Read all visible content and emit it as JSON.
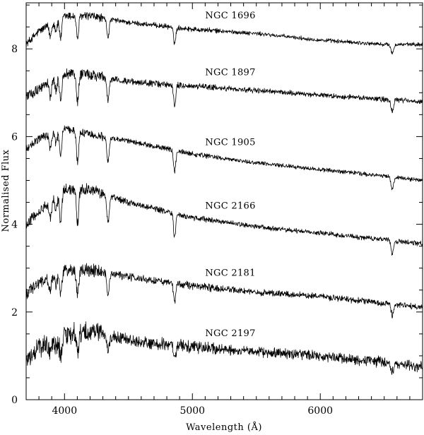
{
  "chart_data": {
    "type": "line",
    "xlabel": "Wavelength (Å)",
    "ylabel": "Normalised Flux",
    "xlim": [
      3700,
      6800
    ],
    "ylim": [
      0,
      9.05
    ],
    "x_ticks": [
      4000,
      5000,
      6000
    ],
    "y_ticks": [
      0,
      2,
      4,
      6,
      8
    ],
    "grid": false,
    "legend": "none",
    "absorption_lines": [
      {
        "wavelength": 3889,
        "depth": 0.45
      },
      {
        "wavelength": 3934,
        "depth": 0.35
      },
      {
        "wavelength": 3970,
        "depth": 0.75
      },
      {
        "wavelength": 4102,
        "depth": 0.85
      },
      {
        "wavelength": 4340,
        "depth": 0.7
      },
      {
        "wavelength": 4861,
        "depth": 0.6
      },
      {
        "wavelength": 6563,
        "depth": 0.35
      }
    ],
    "series": [
      {
        "name": "NGC 1696",
        "continuum": [
          [
            3700,
            8.1
          ],
          [
            3800,
            8.4
          ],
          [
            4000,
            8.75
          ],
          [
            4200,
            8.75
          ],
          [
            4500,
            8.6
          ],
          [
            5000,
            8.45
          ],
          [
            5500,
            8.35
          ],
          [
            6000,
            8.2
          ],
          [
            6500,
            8.1
          ],
          [
            6800,
            8.1
          ]
        ],
        "line_scale": 0.6,
        "noise": 0.04
      },
      {
        "name": "NGC 1897",
        "continuum": [
          [
            3700,
            6.9
          ],
          [
            3800,
            7.1
          ],
          [
            4000,
            7.45
          ],
          [
            4200,
            7.4
          ],
          [
            4500,
            7.25
          ],
          [
            5000,
            7.15
          ],
          [
            5500,
            7.05
          ],
          [
            6000,
            6.95
          ],
          [
            6500,
            6.85
          ],
          [
            6800,
            6.8
          ]
        ],
        "line_scale": 0.75,
        "noise": 0.05
      },
      {
        "name": "NGC 1905",
        "continuum": [
          [
            3700,
            5.7
          ],
          [
            3800,
            5.95
          ],
          [
            4000,
            6.2
          ],
          [
            4200,
            6.05
          ],
          [
            4500,
            5.9
          ],
          [
            5000,
            5.6
          ],
          [
            5500,
            5.4
          ],
          [
            6000,
            5.25
          ],
          [
            6500,
            5.1
          ],
          [
            6800,
            5.0
          ]
        ],
        "line_scale": 0.8,
        "noise": 0.04
      },
      {
        "name": "NGC 2166",
        "continuum": [
          [
            3700,
            4.0
          ],
          [
            3800,
            4.3
          ],
          [
            4000,
            4.8
          ],
          [
            4200,
            4.8
          ],
          [
            4500,
            4.5
          ],
          [
            5000,
            4.15
          ],
          [
            5500,
            3.95
          ],
          [
            6000,
            3.8
          ],
          [
            6500,
            3.65
          ],
          [
            6800,
            3.55
          ]
        ],
        "line_scale": 0.9,
        "noise": 0.05
      },
      {
        "name": "NGC 2181",
        "continuum": [
          [
            3700,
            2.4
          ],
          [
            3800,
            2.65
          ],
          [
            4000,
            2.95
          ],
          [
            4200,
            2.95
          ],
          [
            4500,
            2.8
          ],
          [
            5000,
            2.6
          ],
          [
            5500,
            2.45
          ],
          [
            6000,
            2.35
          ],
          [
            6500,
            2.2
          ],
          [
            6800,
            2.1
          ]
        ],
        "line_scale": 0.7,
        "noise": 0.06
      },
      {
        "name": "NGC 2197",
        "continuum": [
          [
            3700,
            0.9
          ],
          [
            3800,
            1.2
          ],
          [
            4000,
            1.45
          ],
          [
            4200,
            1.6
          ],
          [
            4500,
            1.35
          ],
          [
            5000,
            1.2
          ],
          [
            5500,
            1.1
          ],
          [
            6000,
            1.0
          ],
          [
            6500,
            0.85
          ],
          [
            6800,
            0.75
          ]
        ],
        "line_scale": 0.55,
        "noise": 0.1
      }
    ]
  }
}
